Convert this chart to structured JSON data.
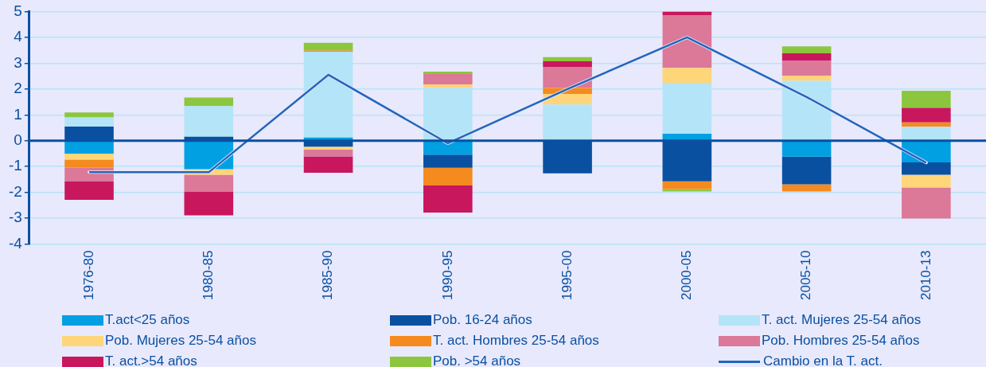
{
  "chart_data": {
    "type": "bar",
    "stacked": true,
    "grid": "y",
    "legend": "bottom",
    "marker": "none",
    "categories": [
      "1976-80",
      "1980-85",
      "1985-90",
      "1990-95",
      "1995-00",
      "2000-05",
      "2005-10",
      "2010-13"
    ],
    "ref_lines": [
      {
        "axis": "y",
        "value": 0,
        "color": "#0a50a1"
      }
    ],
    "ylim": [
      -4,
      5
    ],
    "yticks": [
      -4,
      -3,
      -2,
      -1,
      0,
      1,
      2,
      3,
      4,
      5
    ],
    "series": [
      {
        "name": "T.act<25 años",
        "color": "#00a0e3",
        "values": [
          -0.5,
          -1.1,
          0.12,
          -0.54,
          null,
          0.27,
          -0.62,
          -0.84
        ]
      },
      {
        "name": "Pob. 16-24 años",
        "color": "#0a50a1",
        "values": [
          0.55,
          0.15,
          -0.23,
          -0.51,
          -1.26,
          -1.57,
          -1.07,
          -0.48
        ]
      },
      {
        "name": "T. act. Mujeres 25-54 años",
        "color": "#b4e4f8",
        "values": [
          0.35,
          1.19,
          3.32,
          2.04,
          1.4,
          1.97,
          2.32,
          0.55
        ]
      },
      {
        "name": "Pob. Mujeres 25-54 años",
        "color": "#ffd57a",
        "values": [
          -0.23,
          -0.22,
          -0.12,
          0.14,
          0.41,
          0.58,
          0.19,
          -0.49
        ]
      },
      {
        "name": "T. act. Hombres 25-54 años",
        "color": "#f58a1f",
        "values": [
          -0.31,
          null,
          0.05,
          -0.68,
          0.23,
          -0.3,
          -0.27,
          0.16
        ]
      },
      {
        "name": "Pob. Hombres 25-54 años",
        "color": "#dc7898",
        "values": [
          -0.52,
          -0.64,
          -0.26,
          0.4,
          0.82,
          2.04,
          0.58,
          -1.2
        ]
      },
      {
        "name": "T. act.>54 años",
        "color": "#c8175d",
        "values": [
          -0.73,
          -0.93,
          -0.63,
          -1.05,
          0.21,
          0.14,
          0.29,
          0.56
        ]
      },
      {
        "name": "Pob. >54 años",
        "color": "#8cc63f",
        "values": [
          0.19,
          0.33,
          0.3,
          0.09,
          0.16,
          -0.09,
          0.27,
          0.66
        ]
      },
      {
        "name": "Cambio en la T. act.",
        "type": "line",
        "color": "#2266bb",
        "values": [
          -1.22,
          -1.22,
          2.55,
          -0.1,
          2.0,
          4.0,
          1.69,
          -0.85
        ]
      }
    ]
  }
}
